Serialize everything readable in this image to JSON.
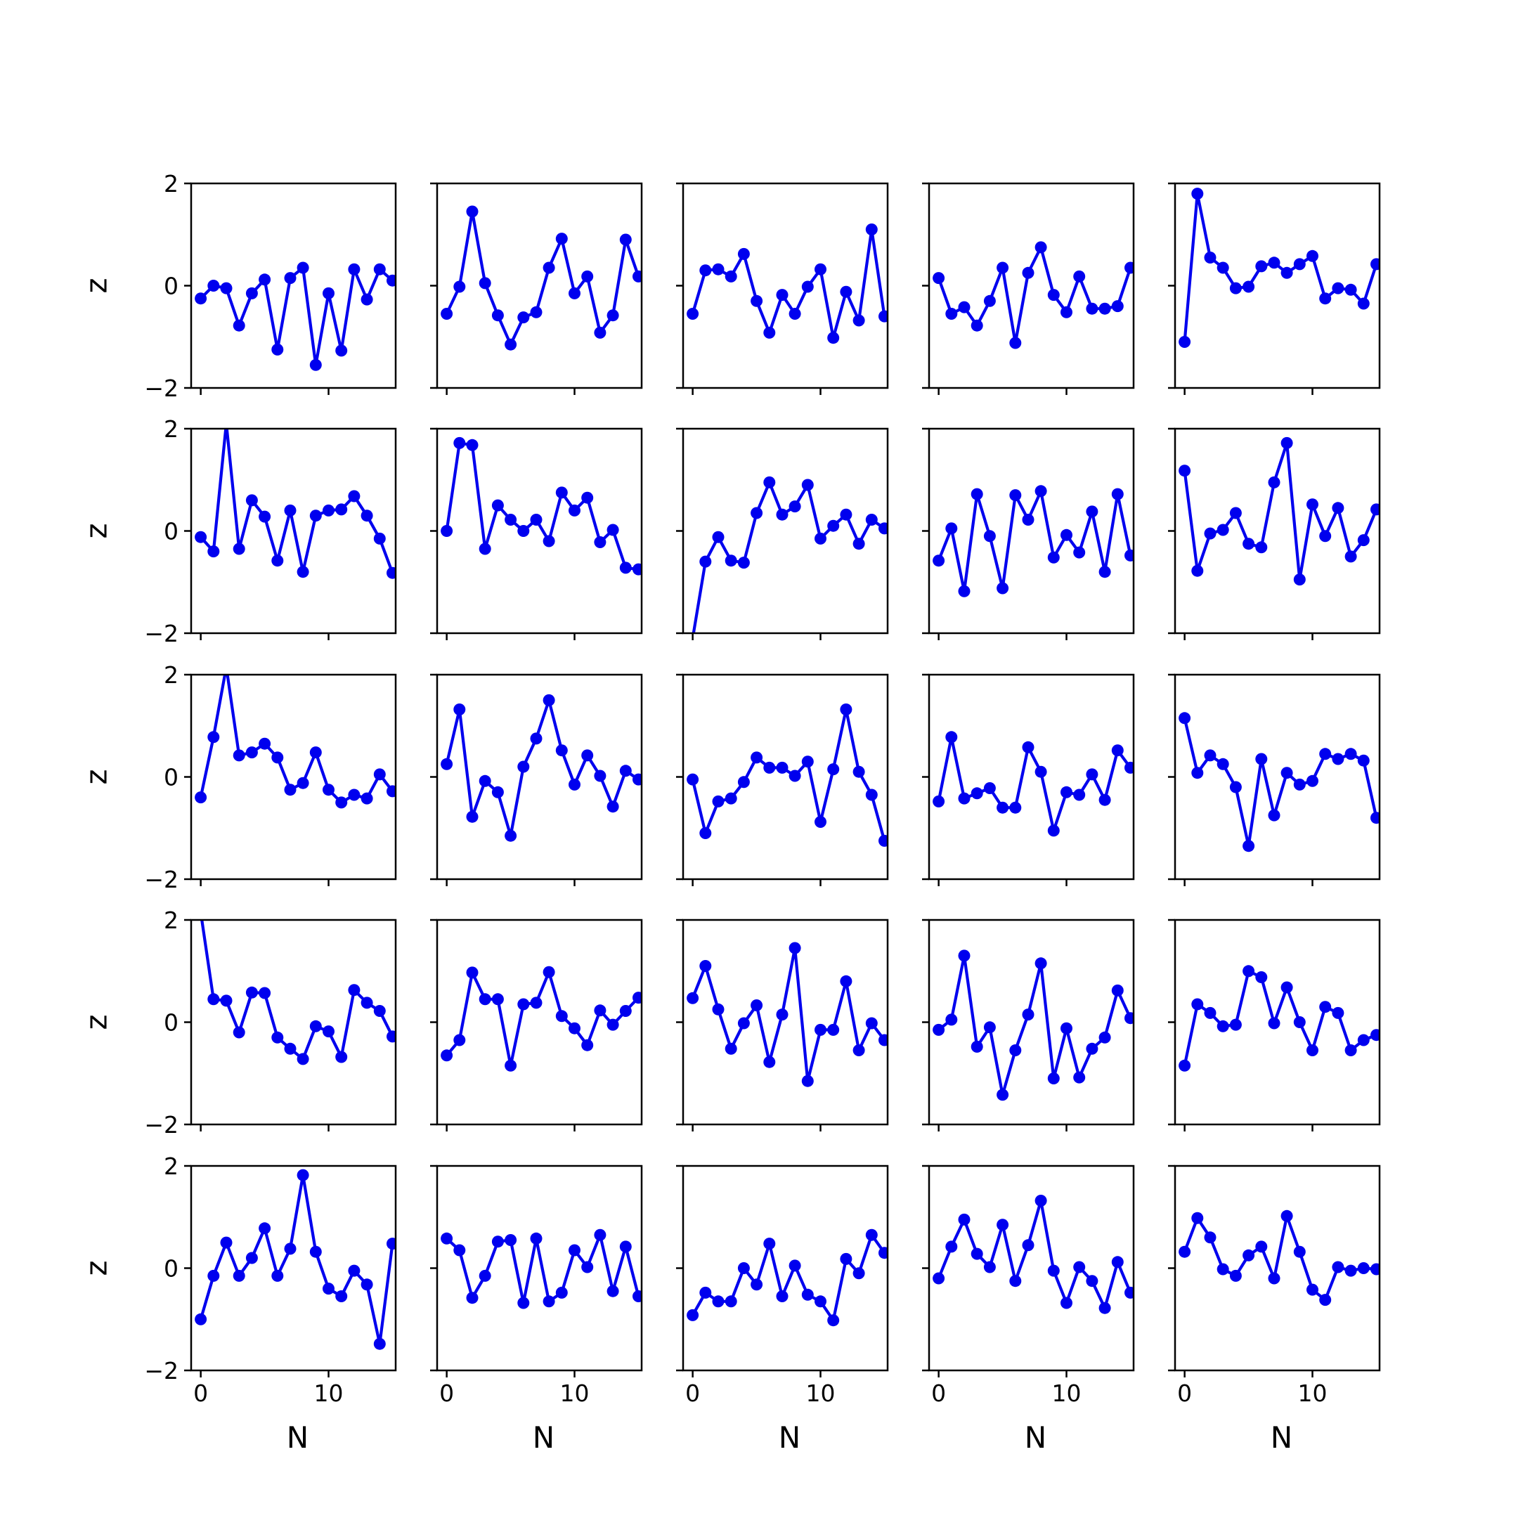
{
  "chart_data": {
    "type": "line",
    "layout": "5x5 grid of line subplots",
    "xlabel": "N",
    "ylabel": "z",
    "xlim": [
      -0.75,
      15.25
    ],
    "ylim": [
      -2,
      2
    ],
    "x_ticks": [
      0,
      10
    ],
    "y_ticks": [
      -2,
      0,
      2
    ],
    "x_tick_labels": [
      "0",
      "10"
    ],
    "y_tick_labels": [
      "−2",
      "0",
      "2"
    ],
    "x": [
      0,
      1,
      2,
      3,
      4,
      5,
      6,
      7,
      8,
      9,
      10,
      11,
      12,
      13,
      14,
      15
    ],
    "line_color": "#0000ee",
    "marker": "circle",
    "grid": false,
    "panels": [
      {
        "row": 1,
        "col": 1,
        "values": [
          -0.25,
          0.0,
          -0.05,
          -0.78,
          -0.15,
          0.12,
          -1.25,
          0.15,
          0.35,
          -1.55,
          -0.15,
          -1.27,
          0.32,
          -0.27,
          0.32,
          0.1
        ]
      },
      {
        "row": 1,
        "col": 2,
        "values": [
          -0.55,
          -0.02,
          1.45,
          0.05,
          -0.58,
          -1.15,
          -0.62,
          -0.52,
          0.35,
          0.92,
          -0.15,
          0.18,
          -0.92,
          -0.58,
          0.9,
          0.18
        ]
      },
      {
        "row": 1,
        "col": 3,
        "values": [
          -0.55,
          0.3,
          0.32,
          0.18,
          0.62,
          -0.3,
          -0.92,
          -0.18,
          -0.55,
          -0.02,
          0.32,
          -1.02,
          -0.12,
          -0.68,
          1.1,
          -0.6
        ]
      },
      {
        "row": 1,
        "col": 4,
        "values": [
          0.15,
          -0.55,
          -0.42,
          -0.78,
          -0.3,
          0.35,
          -1.12,
          0.25,
          0.75,
          -0.18,
          -0.52,
          0.18,
          -0.45,
          -0.45,
          -0.4,
          0.35
        ]
      },
      {
        "row": 1,
        "col": 5,
        "values": [
          -1.1,
          1.8,
          0.55,
          0.35,
          -0.05,
          -0.02,
          0.38,
          0.45,
          0.25,
          0.42,
          0.58,
          -0.25,
          -0.05,
          -0.08,
          -0.35,
          0.42
        ]
      },
      {
        "row": 2,
        "col": 1,
        "values": [
          -0.12,
          -0.4,
          2.1,
          -0.35,
          0.6,
          0.28,
          -0.58,
          0.4,
          -0.8,
          0.3,
          0.4,
          0.42,
          0.68,
          0.3,
          -0.15,
          -0.82
        ]
      },
      {
        "row": 2,
        "col": 2,
        "values": [
          0.0,
          1.72,
          1.68,
          -0.35,
          0.5,
          0.22,
          0.0,
          0.22,
          -0.2,
          0.75,
          0.4,
          0.65,
          -0.22,
          0.02,
          -0.72,
          -0.75
        ]
      },
      {
        "row": 2,
        "col": 3,
        "values": [
          -2.1,
          -0.6,
          -0.12,
          -0.58,
          -0.62,
          0.35,
          0.95,
          0.32,
          0.48,
          0.9,
          -0.15,
          0.1,
          0.32,
          -0.25,
          0.22,
          0.05
        ]
      },
      {
        "row": 2,
        "col": 4,
        "values": [
          -0.58,
          0.05,
          -1.18,
          0.72,
          -0.1,
          -1.12,
          0.7,
          0.22,
          0.78,
          -0.52,
          -0.08,
          -0.42,
          0.38,
          -0.8,
          0.72,
          -0.48
        ]
      },
      {
        "row": 2,
        "col": 5,
        "values": [
          1.18,
          -0.78,
          -0.05,
          0.02,
          0.35,
          -0.25,
          -0.32,
          0.95,
          1.72,
          -0.95,
          0.52,
          -0.1,
          0.45,
          -0.5,
          -0.18,
          0.42
        ]
      },
      {
        "row": 3,
        "col": 1,
        "values": [
          -0.4,
          0.78,
          2.15,
          0.42,
          0.48,
          0.65,
          0.38,
          -0.25,
          -0.12,
          0.48,
          -0.25,
          -0.5,
          -0.35,
          -0.42,
          0.05,
          -0.28
        ]
      },
      {
        "row": 3,
        "col": 2,
        "values": [
          0.25,
          1.32,
          -0.78,
          -0.08,
          -0.3,
          -1.15,
          0.2,
          0.75,
          1.5,
          0.52,
          -0.15,
          0.42,
          0.02,
          -0.58,
          0.12,
          -0.05
        ]
      },
      {
        "row": 3,
        "col": 3,
        "values": [
          -0.05,
          -1.1,
          -0.48,
          -0.42,
          -0.1,
          0.38,
          0.18,
          0.18,
          0.02,
          0.3,
          -0.88,
          0.15,
          1.32,
          0.1,
          -0.35,
          -1.25
        ]
      },
      {
        "row": 3,
        "col": 4,
        "values": [
          -0.48,
          0.78,
          -0.42,
          -0.32,
          -0.22,
          -0.6,
          -0.6,
          0.58,
          0.1,
          -1.05,
          -0.3,
          -0.35,
          0.05,
          -0.45,
          0.52,
          0.18
        ]
      },
      {
        "row": 3,
        "col": 5,
        "values": [
          1.15,
          0.08,
          0.42,
          0.25,
          -0.2,
          -1.35,
          0.35,
          -0.75,
          0.08,
          -0.15,
          -0.08,
          0.45,
          0.35,
          0.45,
          0.32,
          -0.8
        ]
      },
      {
        "row": 4,
        "col": 1,
        "values": [
          2.15,
          0.45,
          0.42,
          -0.2,
          0.58,
          0.57,
          -0.3,
          -0.52,
          -0.72,
          -0.08,
          -0.18,
          -0.68,
          0.63,
          0.38,
          0.22,
          -0.28
        ]
      },
      {
        "row": 4,
        "col": 2,
        "values": [
          -0.65,
          -0.35,
          0.97,
          0.45,
          0.45,
          -0.85,
          0.35,
          0.38,
          0.98,
          0.12,
          -0.12,
          -0.45,
          0.23,
          -0.05,
          0.22,
          0.48
        ]
      },
      {
        "row": 4,
        "col": 3,
        "values": [
          0.47,
          1.1,
          0.25,
          -0.52,
          -0.02,
          0.33,
          -0.78,
          0.15,
          1.45,
          -1.15,
          -0.15,
          -0.15,
          0.8,
          -0.55,
          -0.02,
          -0.35
        ]
      },
      {
        "row": 4,
        "col": 4,
        "values": [
          -0.15,
          0.05,
          1.3,
          -0.48,
          -0.1,
          -1.42,
          -0.55,
          0.15,
          1.15,
          -1.1,
          -0.12,
          -1.08,
          -0.52,
          -0.3,
          0.62,
          0.08
        ]
      },
      {
        "row": 4,
        "col": 5,
        "values": [
          -0.85,
          0.35,
          0.18,
          -0.08,
          -0.05,
          1.0,
          0.88,
          -0.02,
          0.68,
          0.0,
          -0.55,
          0.3,
          0.18,
          -0.55,
          -0.35,
          -0.25
        ]
      },
      {
        "row": 5,
        "col": 1,
        "values": [
          -1.0,
          -0.15,
          0.5,
          -0.15,
          0.2,
          0.78,
          -0.15,
          0.38,
          1.82,
          0.32,
          -0.4,
          -0.55,
          -0.05,
          -0.32,
          -1.48,
          0.48
        ]
      },
      {
        "row": 5,
        "col": 2,
        "values": [
          0.58,
          0.35,
          -0.58,
          -0.15,
          0.52,
          0.55,
          -0.68,
          0.58,
          -0.65,
          -0.48,
          0.35,
          0.02,
          0.65,
          -0.45,
          0.42,
          -0.55
        ]
      },
      {
        "row": 5,
        "col": 3,
        "values": [
          -0.92,
          -0.48,
          -0.65,
          -0.65,
          0.0,
          -0.32,
          0.48,
          -0.55,
          0.05,
          -0.52,
          -0.65,
          -1.02,
          0.18,
          -0.1,
          0.65,
          0.3
        ]
      },
      {
        "row": 5,
        "col": 4,
        "values": [
          -0.2,
          0.42,
          0.95,
          0.28,
          0.02,
          0.85,
          -0.25,
          0.45,
          1.32,
          -0.05,
          -0.68,
          0.02,
          -0.25,
          -0.78,
          0.12,
          -0.48
        ]
      },
      {
        "row": 5,
        "col": 5,
        "values": [
          0.32,
          0.98,
          0.6,
          -0.02,
          -0.15,
          0.25,
          0.42,
          -0.2,
          1.02,
          0.32,
          -0.42,
          -0.62,
          0.02,
          -0.05,
          0.0,
          -0.02
        ]
      }
    ]
  }
}
